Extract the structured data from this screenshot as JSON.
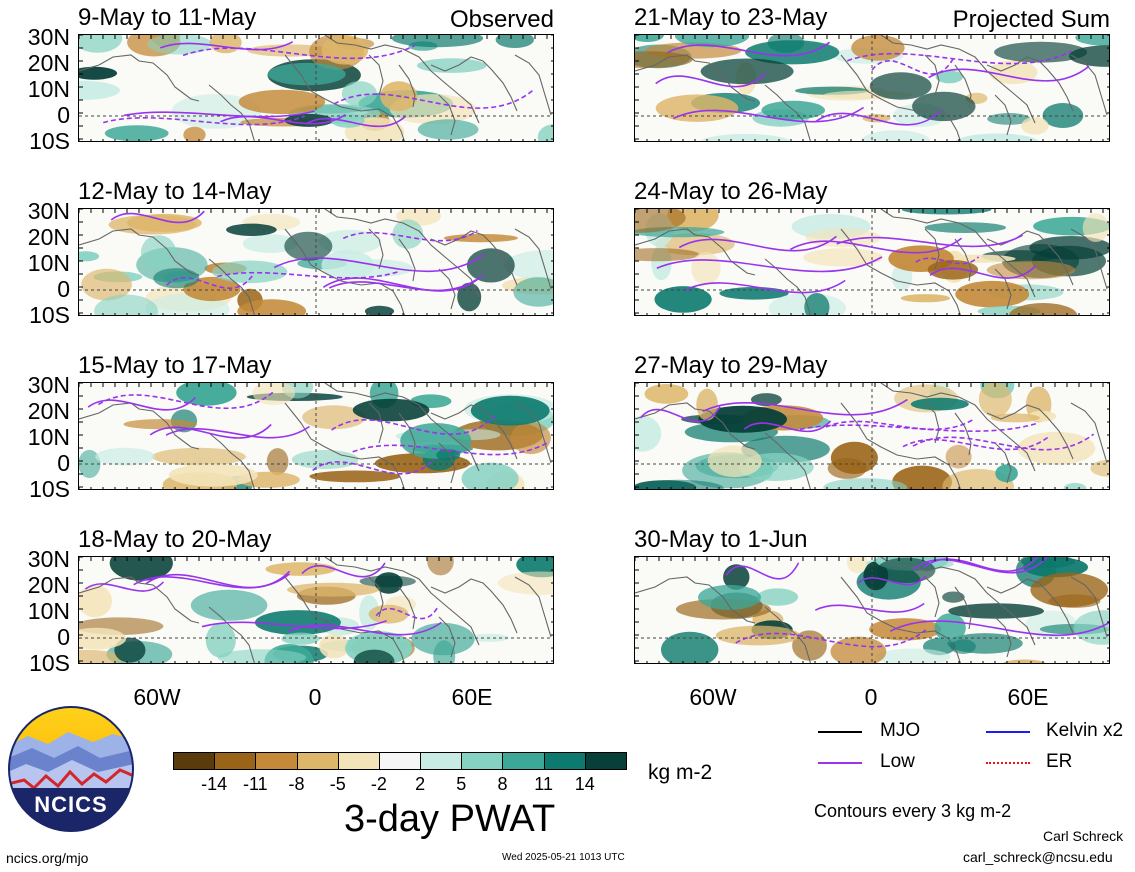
{
  "panels_left": [
    {
      "title": "9-May to 11-May",
      "tag": "Observed"
    },
    {
      "title": "12-May to 14-May",
      "tag": ""
    },
    {
      "title": "15-May to 17-May",
      "tag": ""
    },
    {
      "title": "18-May to 20-May",
      "tag": ""
    }
  ],
  "panels_right": [
    {
      "title": "21-May to 23-May",
      "tag": "Projected Sum"
    },
    {
      "title": "24-May to 26-May",
      "tag": ""
    },
    {
      "title": "27-May to 29-May",
      "tag": ""
    },
    {
      "title": "30-May to 1-Jun",
      "tag": ""
    }
  ],
  "lat_labels": [
    "30N",
    "20N",
    "10N",
    "0",
    "10S"
  ],
  "lon_labels": [
    "60W",
    "0",
    "60E"
  ],
  "legend": {
    "mjo": "MJO",
    "kelvin": "Kelvin x2",
    "low": "Low",
    "er": "ER",
    "contours_note": "Contours every 3 kg m-2",
    "colors": {
      "mjo": "#000000",
      "kelvin": "#1a1aff",
      "low": "#9933ee",
      "er": "#ee1111"
    }
  },
  "colorbar": {
    "ticks": [
      "-14",
      "-11",
      "-8",
      "-5",
      "-2",
      "2",
      "5",
      "8",
      "11",
      "14"
    ],
    "units": "kg m-2",
    "title": "3-day PWAT",
    "colors": [
      "#5a3c0c",
      "#9a6418",
      "#c48a3a",
      "#ddb66a",
      "#f3e3b8",
      "#f6f6f6",
      "#c8ece4",
      "#86d2c2",
      "#3ea898",
      "#0c7a6e",
      "#064038"
    ]
  },
  "logo": {
    "text": "NCICS"
  },
  "footer": {
    "left": "ncics.org/mjo",
    "center": "Wed 2025-05-21 1013 UTC",
    "right_name": "Carl Schreck",
    "right_email": "carl_schreck@ncsu.edu"
  }
}
